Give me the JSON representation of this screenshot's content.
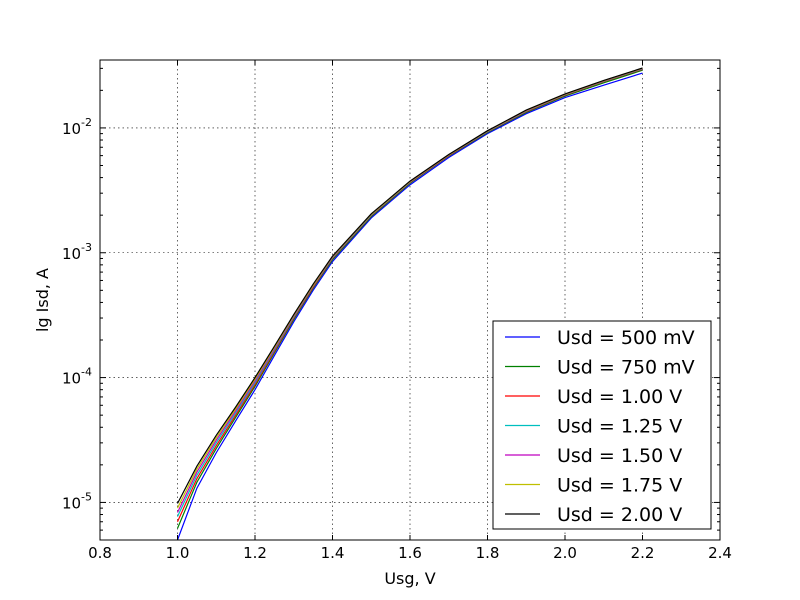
{
  "chart_data": {
    "type": "line",
    "xlabel": "Usg, V",
    "ylabel": "lg Isd, A",
    "xlim": [
      0.8,
      2.4
    ],
    "ylim": [
      5e-06,
      0.035
    ],
    "yscale": "log",
    "grid": true,
    "legend_position": "lower-right",
    "x_ticks": [
      "0.8",
      "1.0",
      "1.2",
      "1.4",
      "1.6",
      "1.8",
      "2.0",
      "2.2",
      "2.4"
    ],
    "x_tick_values": [
      0.8,
      1.0,
      1.2,
      1.4,
      1.6,
      1.8,
      2.0,
      2.2,
      2.4
    ],
    "y_ticks": [
      {
        "value": 1e-05,
        "base": "10",
        "exp": "-5"
      },
      {
        "value": 0.0001,
        "base": "10",
        "exp": "-4"
      },
      {
        "value": 0.001,
        "base": "10",
        "exp": "-3"
      },
      {
        "value": 0.01,
        "base": "10",
        "exp": "-2"
      }
    ],
    "x": [
      1.0,
      1.05,
      1.1,
      1.15,
      1.2,
      1.25,
      1.3,
      1.35,
      1.4,
      1.5,
      1.6,
      1.7,
      1.8,
      1.9,
      2.0,
      2.1,
      2.2
    ],
    "series": [
      {
        "name": "Usd = 500 mV",
        "color": "#0000ff",
        "values": [
          5e-06,
          1.3e-05,
          2.5e-05,
          4.5e-05,
          8e-05,
          0.00015,
          0.00028,
          0.0005,
          0.00085,
          0.0019,
          0.0035,
          0.0058,
          0.009,
          0.013,
          0.0175,
          0.022,
          0.0275
        ]
      },
      {
        "name": "Usd = 750 mV",
        "color": "#008000",
        "values": [
          6.2e-06,
          1.45e-05,
          2.7e-05,
          4.8e-05,
          8.5e-05,
          0.000158,
          0.000292,
          0.00052,
          0.00088,
          0.00195,
          0.0036,
          0.00595,
          0.0092,
          0.0133,
          0.018,
          0.023,
          0.029
        ]
      },
      {
        "name": "Usd = 1.00 V",
        "color": "#ff0000",
        "values": [
          7e-06,
          1.55e-05,
          2.85e-05,
          5e-05,
          8.8e-05,
          0.000162,
          0.0003,
          0.00053,
          0.0009,
          0.00198,
          0.00365,
          0.006,
          0.0093,
          0.0135,
          0.0183,
          0.0235,
          0.0295
        ]
      },
      {
        "name": "Usd = 1.25 V",
        "color": "#00bfbf",
        "values": [
          7.7e-06,
          1.65e-05,
          3e-05,
          5.2e-05,
          9.1e-05,
          0.000166,
          0.000305,
          0.00054,
          0.00091,
          0.002,
          0.00368,
          0.00605,
          0.00935,
          0.0136,
          0.0184,
          0.0237,
          0.0297
        ]
      },
      {
        "name": "Usd = 1.50 V",
        "color": "#bf00bf",
        "values": [
          8.3e-06,
          1.75e-05,
          3.15e-05,
          5.4e-05,
          9.4e-05,
          0.00017,
          0.00031,
          0.000545,
          0.00092,
          0.00202,
          0.0037,
          0.00608,
          0.0094,
          0.0137,
          0.0185,
          0.0238,
          0.0299
        ]
      },
      {
        "name": "Usd = 1.75 V",
        "color": "#bfbf00",
        "values": [
          9e-06,
          1.85e-05,
          3.3e-05,
          5.6e-05,
          9.7e-05,
          0.000174,
          0.000315,
          0.00055,
          0.00093,
          0.00203,
          0.00372,
          0.0061,
          0.00945,
          0.0138,
          0.0186,
          0.0239,
          0.03
        ]
      },
      {
        "name": "Usd = 2.00 V",
        "color": "#000000",
        "values": [
          9.8e-06,
          1.95e-05,
          3.45e-05,
          5.8e-05,
          0.0001,
          0.000178,
          0.00032,
          0.00056,
          0.00094,
          0.00205,
          0.00375,
          0.00612,
          0.0095,
          0.0139,
          0.0187,
          0.024,
          0.0302
        ]
      }
    ]
  }
}
